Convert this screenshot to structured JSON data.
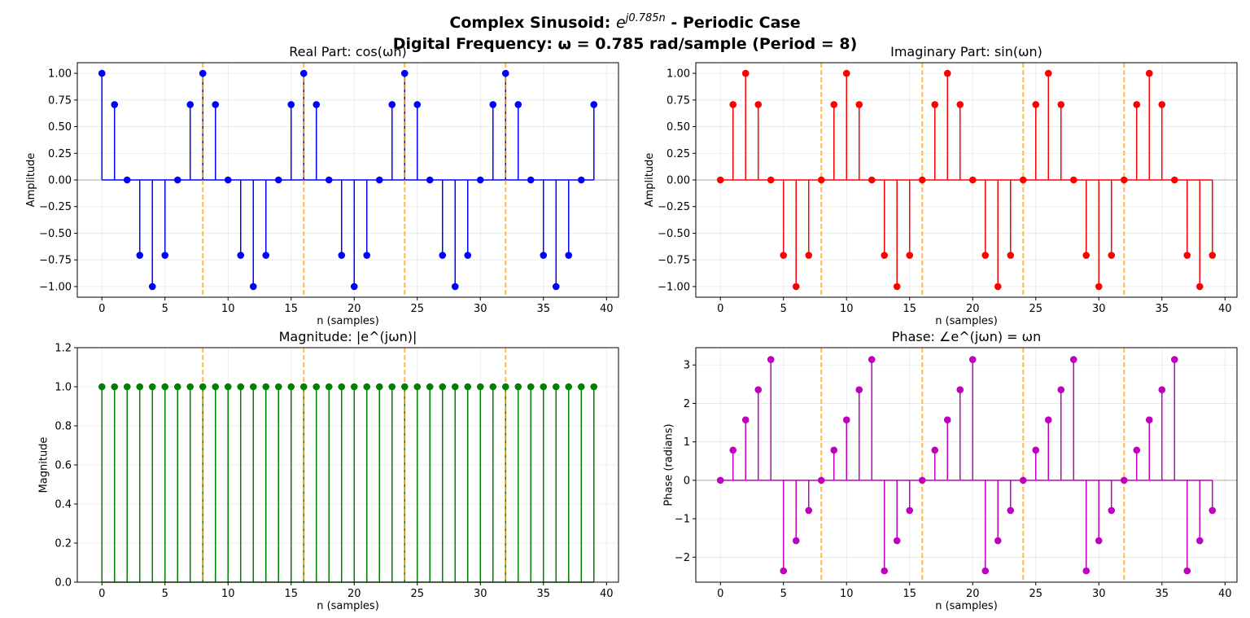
{
  "figure": {
    "title_line1_prefix": "Complex Sinusoid: ",
    "title_line1_base": "e",
    "title_line1_exponent": "j0.785n",
    "title_line1_suffix": " - Periodic Case",
    "title_line2": "Digital Frequency: ω = 0.785 rad/sample (Period = 8)"
  },
  "chart_data": [
    {
      "type": "stem",
      "title": "Real Part: cos(ωn)",
      "xlabel": "n (samples)",
      "ylabel": "Amplitude",
      "color": "#0000ff",
      "x": [
        0,
        1,
        2,
        3,
        4,
        5,
        6,
        7,
        8,
        9,
        10,
        11,
        12,
        13,
        14,
        15,
        16,
        17,
        18,
        19,
        20,
        21,
        22,
        23,
        24,
        25,
        26,
        27,
        28,
        29,
        30,
        31,
        32,
        33,
        34,
        35,
        36,
        37,
        38,
        39
      ],
      "y": [
        1,
        0.707,
        0,
        -0.707,
        -1,
        -0.707,
        0,
        0.707,
        1,
        0.707,
        0,
        -0.707,
        -1,
        -0.707,
        0,
        0.707,
        1,
        0.707,
        0,
        -0.707,
        -1,
        -0.707,
        0,
        0.707,
        1,
        0.707,
        0,
        -0.707,
        -1,
        -0.707,
        0,
        0.707,
        1,
        0.707,
        0,
        -0.707,
        -1,
        -0.707,
        0,
        0.707
      ],
      "xlim": [
        -1.95,
        40.95
      ],
      "ylim": [
        -1.1,
        1.1
      ],
      "xticks": [
        0,
        5,
        10,
        15,
        20,
        25,
        30,
        35,
        40
      ],
      "xtick_labels": [
        "0",
        "5",
        "10",
        "15",
        "20",
        "25",
        "30",
        "35",
        "40"
      ],
      "yticks": [
        -1,
        -0.75,
        -0.5,
        -0.25,
        0,
        0.25,
        0.5,
        0.75,
        1
      ],
      "ytick_labels": [
        "−1.00",
        "−0.75",
        "−0.50",
        "−0.25",
        "0.00",
        "0.25",
        "0.50",
        "0.75",
        "1.00"
      ],
      "period_markers": [
        8,
        16,
        24,
        32
      ],
      "grid": true
    },
    {
      "type": "stem",
      "title": "Imaginary Part: sin(ωn)",
      "xlabel": "n (samples)",
      "ylabel": "Amplitude",
      "color": "#ff0000",
      "x": [
        0,
        1,
        2,
        3,
        4,
        5,
        6,
        7,
        8,
        9,
        10,
        11,
        12,
        13,
        14,
        15,
        16,
        17,
        18,
        19,
        20,
        21,
        22,
        23,
        24,
        25,
        26,
        27,
        28,
        29,
        30,
        31,
        32,
        33,
        34,
        35,
        36,
        37,
        38,
        39
      ],
      "y": [
        0,
        0.707,
        1,
        0.707,
        0,
        -0.707,
        -1,
        -0.707,
        0,
        0.707,
        1,
        0.707,
        0,
        -0.707,
        -1,
        -0.707,
        0,
        0.707,
        1,
        0.707,
        0,
        -0.707,
        -1,
        -0.707,
        0,
        0.707,
        1,
        0.707,
        0,
        -0.707,
        -1,
        -0.707,
        0,
        0.707,
        1,
        0.707,
        0,
        -0.707,
        -1,
        -0.707
      ],
      "xlim": [
        -1.95,
        40.95
      ],
      "ylim": [
        -1.1,
        1.1
      ],
      "xticks": [
        0,
        5,
        10,
        15,
        20,
        25,
        30,
        35,
        40
      ],
      "xtick_labels": [
        "0",
        "5",
        "10",
        "15",
        "20",
        "25",
        "30",
        "35",
        "40"
      ],
      "yticks": [
        -1,
        -0.75,
        -0.5,
        -0.25,
        0,
        0.25,
        0.5,
        0.75,
        1
      ],
      "ytick_labels": [
        "−1.00",
        "−0.75",
        "−0.50",
        "−0.25",
        "0.00",
        "0.25",
        "0.50",
        "0.75",
        "1.00"
      ],
      "period_markers": [
        8,
        16,
        24,
        32
      ],
      "grid": true
    },
    {
      "type": "stem",
      "title": "Magnitude: |e^(jωn)|",
      "xlabel": "n (samples)",
      "ylabel": "Magnitude",
      "color": "#008000",
      "x": [
        0,
        1,
        2,
        3,
        4,
        5,
        6,
        7,
        8,
        9,
        10,
        11,
        12,
        13,
        14,
        15,
        16,
        17,
        18,
        19,
        20,
        21,
        22,
        23,
        24,
        25,
        26,
        27,
        28,
        29,
        30,
        31,
        32,
        33,
        34,
        35,
        36,
        37,
        38,
        39
      ],
      "y": [
        1,
        1,
        1,
        1,
        1,
        1,
        1,
        1,
        1,
        1,
        1,
        1,
        1,
        1,
        1,
        1,
        1,
        1,
        1,
        1,
        1,
        1,
        1,
        1,
        1,
        1,
        1,
        1,
        1,
        1,
        1,
        1,
        1,
        1,
        1,
        1,
        1,
        1,
        1,
        1
      ],
      "xlim": [
        -1.95,
        40.95
      ],
      "ylim": [
        0,
        1.2
      ],
      "xticks": [
        0,
        5,
        10,
        15,
        20,
        25,
        30,
        35,
        40
      ],
      "xtick_labels": [
        "0",
        "5",
        "10",
        "15",
        "20",
        "25",
        "30",
        "35",
        "40"
      ],
      "yticks": [
        0,
        0.2,
        0.4,
        0.6,
        0.8,
        1.0,
        1.2
      ],
      "ytick_labels": [
        "0.0",
        "0.2",
        "0.4",
        "0.6",
        "0.8",
        "1.0",
        "1.2"
      ],
      "period_markers": [
        8,
        16,
        24,
        32
      ],
      "grid": true
    },
    {
      "type": "stem",
      "title": "Phase: ∠e^(jωn) = ωn",
      "xlabel": "n (samples)",
      "ylabel": "Phase (radians)",
      "color": "#bf00bf",
      "x": [
        0,
        1,
        2,
        3,
        4,
        5,
        6,
        7,
        8,
        9,
        10,
        11,
        12,
        13,
        14,
        15,
        16,
        17,
        18,
        19,
        20,
        21,
        22,
        23,
        24,
        25,
        26,
        27,
        28,
        29,
        30,
        31,
        32,
        33,
        34,
        35,
        36,
        37,
        38,
        39
      ],
      "y": [
        0,
        0.785,
        1.571,
        2.356,
        3.142,
        -2.356,
        -1.571,
        -0.785,
        0,
        0.785,
        1.571,
        2.356,
        3.142,
        -2.356,
        -1.571,
        -0.785,
        0,
        0.785,
        1.571,
        2.356,
        3.142,
        -2.356,
        -1.571,
        -0.785,
        0,
        0.785,
        1.571,
        2.356,
        3.142,
        -2.356,
        -1.571,
        -0.785,
        0,
        0.785,
        1.571,
        2.356,
        3.142,
        -2.356,
        -1.571,
        -0.785
      ],
      "xlim": [
        -1.95,
        40.95
      ],
      "ylim": [
        -2.65,
        3.45
      ],
      "xticks": [
        0,
        5,
        10,
        15,
        20,
        25,
        30,
        35,
        40
      ],
      "xtick_labels": [
        "0",
        "5",
        "10",
        "15",
        "20",
        "25",
        "30",
        "35",
        "40"
      ],
      "yticks": [
        -2,
        -1,
        0,
        1,
        2,
        3
      ],
      "ytick_labels": [
        "−2",
        "−1",
        "0",
        "1",
        "2",
        "3"
      ],
      "period_markers": [
        8,
        16,
        24,
        32
      ],
      "grid": true
    }
  ],
  "colors": {
    "period_marker": "#ffa500",
    "baseline": "#808080",
    "grid": "#b0b0b0"
  }
}
